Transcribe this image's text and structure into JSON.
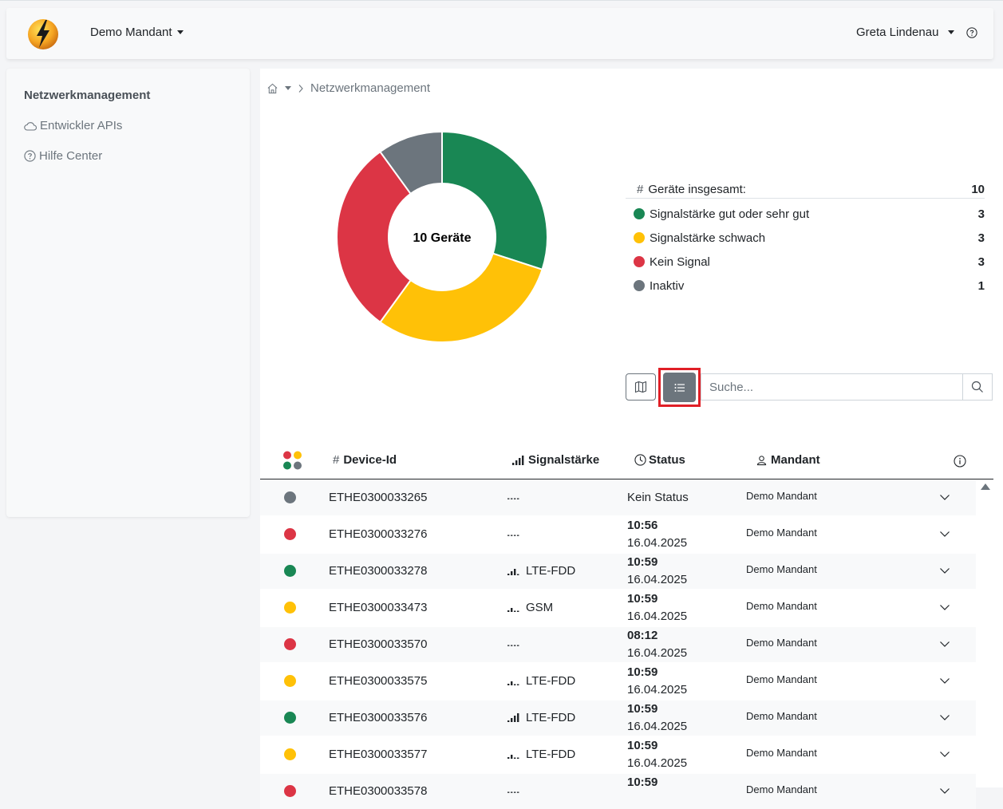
{
  "header": {
    "mandant": "Demo Mandant",
    "user": "Greta Lindenau"
  },
  "sidebar": {
    "title": "Netzwerkmanagement",
    "items": [
      {
        "label": "Entwickler APIs",
        "icon": "cloud-icon"
      },
      {
        "label": "Hilfe Center",
        "icon": "help-circle-icon"
      }
    ]
  },
  "breadcrumb": {
    "current": "Netzwerkmanagement"
  },
  "donut": {
    "center_label": "10 Geräte",
    "segments": [
      {
        "name": "Signalstärke gut oder sehr gut",
        "value": 3,
        "color": "#198754"
      },
      {
        "name": "Signalstärke schwach",
        "value": 3,
        "color": "#ffc107"
      },
      {
        "name": "Kein Signal",
        "value": 3,
        "color": "#dc3545"
      },
      {
        "name": "Inaktiv",
        "value": 1,
        "color": "#6c757d"
      }
    ]
  },
  "stats": {
    "total_label": "Geräte insgesamt:",
    "total_prefix": "#",
    "total_value": "10",
    "rows": [
      {
        "label": "Signalstärke gut oder sehr gut",
        "value": "3",
        "color": "#198754"
      },
      {
        "label": "Signalstärke schwach",
        "value": "3",
        "color": "#ffc107"
      },
      {
        "label": "Kein Signal",
        "value": "3",
        "color": "#dc3545"
      },
      {
        "label": "Inaktiv",
        "value": "1",
        "color": "#6c757d"
      }
    ]
  },
  "search": {
    "placeholder": "Suche..."
  },
  "table": {
    "headers": {
      "device_prefix": "#",
      "device": "Device-Id",
      "signal": "Signalstärke",
      "status": "Status",
      "mandant": "Mandant"
    },
    "rows": [
      {
        "color": "#6c757d",
        "id": "ETHE0300033265",
        "signal_text": "",
        "signal_bars": 0,
        "status_time": "",
        "status_text": "Kein Status",
        "mandant": "Demo Mandant"
      },
      {
        "color": "#dc3545",
        "id": "ETHE0300033276",
        "signal_text": "",
        "signal_bars": 0,
        "status_time": "10:56",
        "status_text": "16.04.2025",
        "mandant": "Demo Mandant"
      },
      {
        "color": "#198754",
        "id": "ETHE0300033278",
        "signal_text": "LTE-FDD",
        "signal_bars": 3,
        "status_time": "10:59",
        "status_text": "16.04.2025",
        "mandant": "Demo Mandant"
      },
      {
        "color": "#ffc107",
        "id": "ETHE0300033473",
        "signal_text": "GSM",
        "signal_bars": 2,
        "status_time": "10:59",
        "status_text": "16.04.2025",
        "mandant": "Demo Mandant"
      },
      {
        "color": "#dc3545",
        "id": "ETHE0300033570",
        "signal_text": "",
        "signal_bars": 0,
        "status_time": "08:12",
        "status_text": "16.04.2025",
        "mandant": "Demo Mandant"
      },
      {
        "color": "#ffc107",
        "id": "ETHE0300033575",
        "signal_text": "LTE-FDD",
        "signal_bars": 2,
        "status_time": "10:59",
        "status_text": "16.04.2025",
        "mandant": "Demo Mandant"
      },
      {
        "color": "#198754",
        "id": "ETHE0300033576",
        "signal_text": "LTE-FDD",
        "signal_bars": 4,
        "status_time": "10:59",
        "status_text": "16.04.2025",
        "mandant": "Demo Mandant"
      },
      {
        "color": "#ffc107",
        "id": "ETHE0300033577",
        "signal_text": "LTE-FDD",
        "signal_bars": 2,
        "status_time": "10:59",
        "status_text": "16.04.2025",
        "mandant": "Demo Mandant"
      },
      {
        "color": "#dc3545",
        "id": "ETHE0300033578",
        "signal_text": "",
        "signal_bars": 0,
        "status_time": "10:59",
        "status_text": "",
        "mandant": "Demo Mandant"
      }
    ]
  }
}
